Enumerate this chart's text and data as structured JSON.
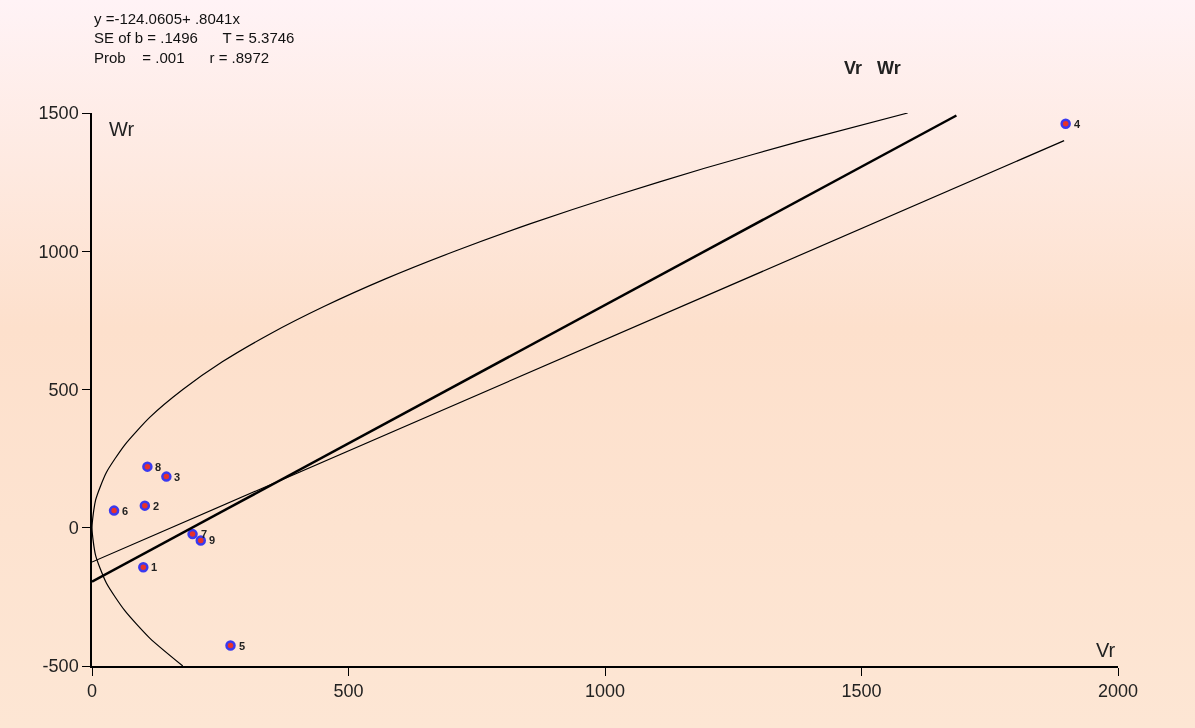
{
  "chart_data": {
    "type": "scatter",
    "title": "Vr   Wr",
    "xlabel": "Vr",
    "ylabel": "Wr",
    "annotations": [
      "y =-124.0605+ .8041x",
      "SE of b = .1496      T = 5.3746",
      "Prob    = .001      r = .8972",
      {
        "text": "1",
        "x": 100,
        "y": -143
      },
      {
        "text": "2",
        "x": 103,
        "y": 80
      },
      {
        "text": "3",
        "x": 145,
        "y": 185
      },
      {
        "text": "4",
        "x": 1898,
        "y": 1461
      },
      {
        "text": "5",
        "x": 270,
        "y": -426
      },
      {
        "text": "6",
        "x": 43,
        "y": 62
      },
      {
        "text": "7",
        "x": 196,
        "y": -23
      },
      {
        "text": "8",
        "x": 108,
        "y": 221
      },
      {
        "text": "9",
        "x": 212,
        "y": -46
      }
    ],
    "xlim": [
      0,
      2000
    ],
    "xticks": [
      0,
      500,
      1000,
      1500,
      2000
    ],
    "ylim": [
      -500,
      1500
    ],
    "yticks": [
      -500,
      0,
      500,
      1000,
      1500
    ],
    "grid": false,
    "legend": false,
    "series": [
      {
        "marker": "circle",
        "color": "#3a3af0",
        "x": [
          100,
          103,
          145,
          1898,
          270,
          43,
          196,
          108,
          212
        ],
        "values": [
          -143,
          80,
          185,
          1461,
          -426,
          62,
          -23,
          221,
          -46
        ]
      },
      {
        "type": "line",
        "marker": "none",
        "color": "#000000",
        "line_style": "solid",
        "x": [
          0,
          1895
        ],
        "values": [
          -124,
          1400
        ]
      },
      {
        "type": "line",
        "marker": "none",
        "color": "#000000",
        "line_style": "solid",
        "x": [
          0,
          1685
        ],
        "values": [
          -195,
          1491
        ]
      },
      {
        "type": "line",
        "marker": "none",
        "color": "#000000",
        "line_style": "solid",
        "x": [
          177,
          113,
          64,
          28,
          7,
          0,
          7,
          28,
          64,
          113,
          177,
          254,
          346,
          452,
          572,
          707,
          855,
          1018,
          1194,
          1385,
          1590
        ],
        "values": [
          -500,
          -400,
          -300,
          -200,
          -100,
          0,
          100,
          200,
          300,
          400,
          500,
          600,
          700,
          800,
          900,
          1000,
          1100,
          1200,
          1300,
          1400,
          1500
        ]
      }
    ]
  }
}
